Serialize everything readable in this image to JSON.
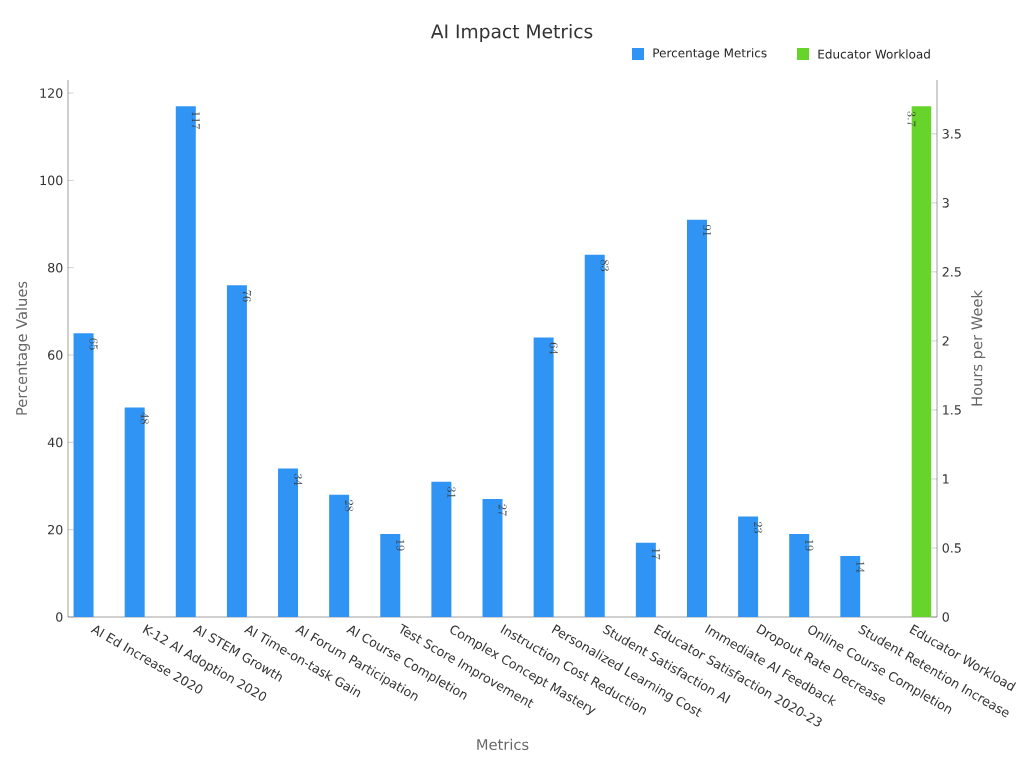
{
  "chart_data": {
    "type": "bar",
    "title": "AI Impact Metrics",
    "xlabel": "Metrics",
    "ylabel": "Percentage Values",
    "y2label": "Hours per Week",
    "categories": [
      "AI Ed Increase 2020",
      "K-12 AI Adoption 2020",
      "AI STEM Growth",
      "AI Time-on-task Gain",
      "AI Forum Participation",
      "AI Course Completion",
      "Test Score Improvement",
      "Complex Concept Mastery",
      "Instruction Cost Reduction",
      "Personalized Learning Cost",
      "Student Satisfaction AI",
      "Educator Satisfaction 2020-23",
      "Immediate AI Feedback",
      "Dropout Rate Decrease",
      "Online Course Completion",
      "Student Retention Increase",
      "Educator Workload"
    ],
    "series": [
      {
        "name": "Percentage Metrics",
        "color": "#3094f4",
        "values": [
          65,
          48,
          117,
          76,
          34,
          28,
          19,
          31,
          27,
          64,
          83,
          17,
          91,
          23,
          19,
          14,
          null
        ]
      },
      {
        "name": "Educator Workload",
        "color": "#66d42a",
        "axis": "y2",
        "values": [
          null,
          null,
          null,
          null,
          null,
          null,
          null,
          null,
          null,
          null,
          null,
          null,
          null,
          null,
          null,
          null,
          3.7
        ]
      }
    ],
    "ylim": [
      0,
      123
    ],
    "yticks": [
      0,
      20,
      40,
      60,
      80,
      100,
      120
    ],
    "y2lim": [
      0,
      3.89
    ],
    "y2ticks": [
      0,
      0.5,
      1,
      1.5,
      2,
      2.5,
      3,
      3.5
    ],
    "data_labels": true,
    "legend": "top right",
    "grid": false
  }
}
